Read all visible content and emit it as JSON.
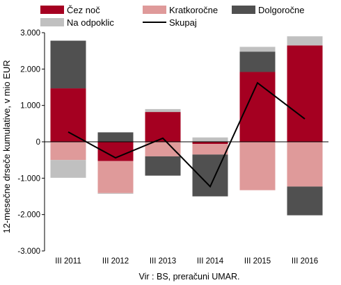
{
  "chart_data": {
    "type": "bar",
    "stacked": true,
    "categories": [
      "III 2011",
      "III 2012",
      "III 2013",
      "III 2014",
      "III 2015",
      "III 2016"
    ],
    "series": [
      {
        "name": "Čez noč",
        "color": "#a50021",
        "values": [
          1470,
          -530,
          820,
          -60,
          1920,
          2650
        ]
      },
      {
        "name": "Kratkoročne",
        "color": "#df9a9a",
        "values": [
          -500,
          -880,
          -400,
          -290,
          -1330,
          -1230
        ]
      },
      {
        "name": "Dolgoročne",
        "color": "#505050",
        "values": [
          1310,
          260,
          -530,
          -1150,
          560,
          -790
        ]
      },
      {
        "name": "Na odpoklic",
        "color": "#c0c0c0",
        "values": [
          -490,
          -20,
          80,
          120,
          130,
          250
        ]
      }
    ],
    "line": {
      "name": "Skupaj",
      "color": "#000000",
      "values": [
        270,
        -440,
        100,
        -1230,
        1620,
        630
      ]
    },
    "ylabel": "12-mesečne drseče kumulative, v mio EUR",
    "ylim": [
      -3000,
      3000
    ],
    "yticks": [
      -3000,
      -2000,
      -1000,
      0,
      1000,
      2000,
      3000
    ],
    "ytick_labels": [
      "-3.000",
      "-2.000",
      "-1.000",
      "0",
      "1.000",
      "2.000",
      "3.000"
    ],
    "grid": false,
    "legend_placement": "top"
  },
  "source_note": "Vir : BS, preračuni UMAR."
}
